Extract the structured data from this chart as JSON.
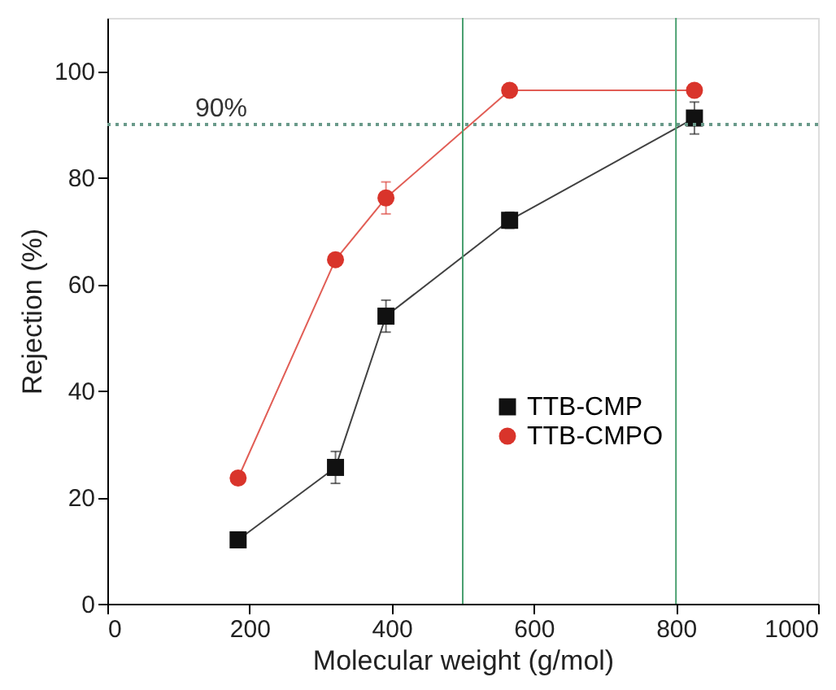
{
  "chart_data": {
    "type": "line",
    "xlabel": "Molecular weight (g/mol)",
    "ylabel": "Rejection (%)",
    "xlim": [
      0,
      1000
    ],
    "xticks": [
      0,
      200,
      400,
      600,
      800,
      1000
    ],
    "ylim": [
      0,
      110
    ],
    "yticks": [
      0,
      20,
      40,
      60,
      80,
      100
    ],
    "x": [
      184,
      321,
      392,
      566,
      826
    ],
    "series": [
      {
        "name": "TTB-CMP",
        "color": "#111111",
        "marker": "square",
        "values": [
          12,
          25.6,
          54,
          72,
          91.2
        ],
        "errors": [
          1,
          3,
          3,
          1.5,
          3
        ]
      },
      {
        "name": "TTB-CMPO",
        "color": "#d9342b",
        "marker": "circle",
        "values": [
          23.6,
          64.6,
          76.2,
          96.4,
          96.4
        ],
        "errors": [
          1,
          1,
          3,
          1,
          1
        ]
      }
    ],
    "ref_lines": [
      {
        "axis": "y",
        "value": 90,
        "label": "90%",
        "color": "#6a9a8a",
        "line_style": "dotted"
      },
      {
        "axis": "x",
        "value": 500,
        "label": null,
        "color": "#4aa070",
        "line_style": "solid"
      },
      {
        "axis": "x",
        "value": 800,
        "label": null,
        "color": "#4aa070",
        "line_style": "solid"
      }
    ],
    "line_style": "solid",
    "legend": "bottom right",
    "grid": false
  }
}
